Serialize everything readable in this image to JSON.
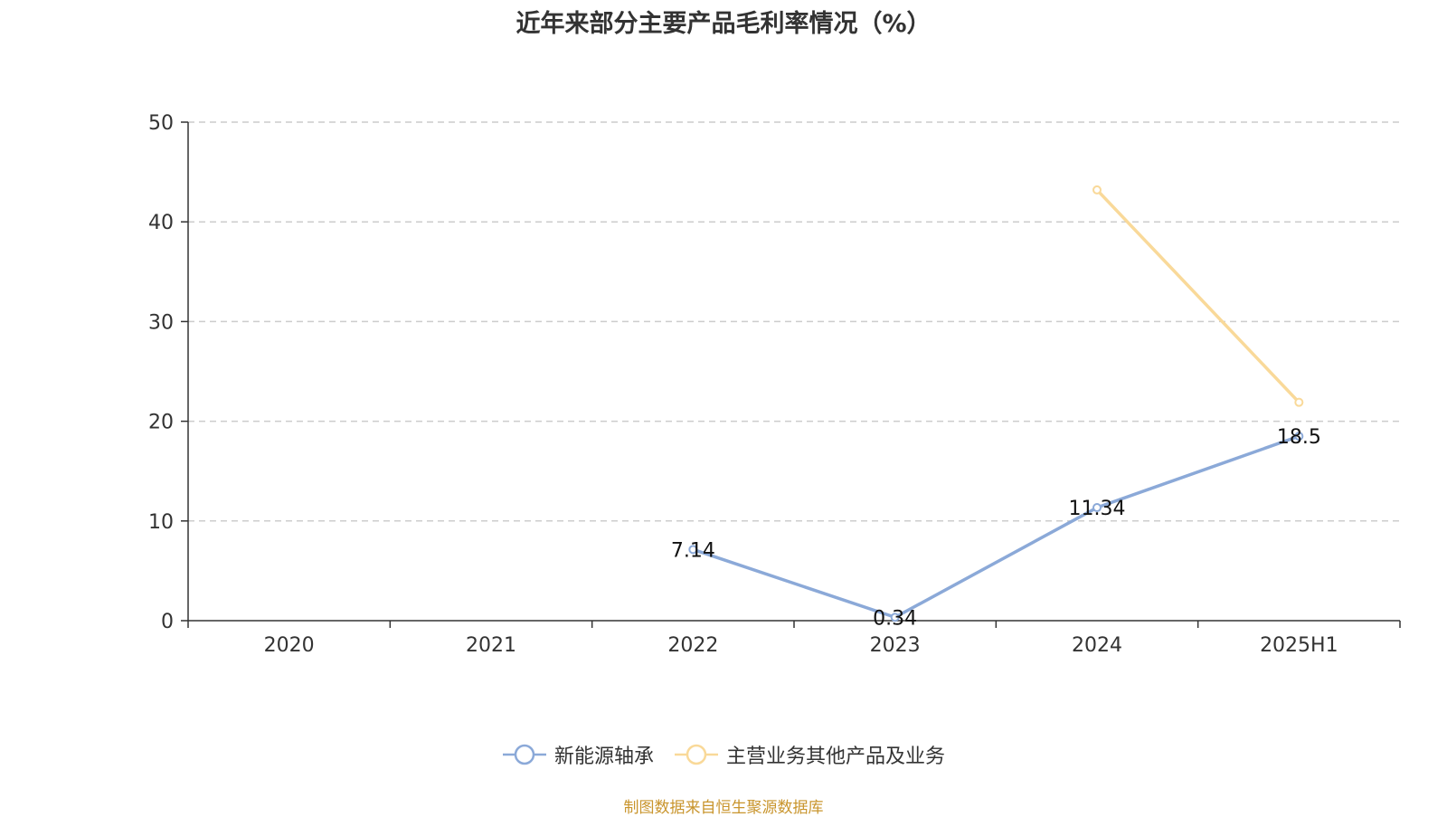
{
  "title": "近年来部分主要产品毛利率情况（%）",
  "source": "制图数据来自恒生聚源数据库",
  "chart_data": {
    "type": "line",
    "title": "近年来部分主要产品毛利率情况（%）",
    "categories": [
      "2020",
      "2021",
      "2022",
      "2023",
      "2024",
      "2025H1"
    ],
    "ylim": [
      0,
      50
    ],
    "yticks": [
      0,
      10,
      20,
      30,
      40,
      50
    ],
    "grid": true,
    "legend_position": "bottom",
    "series": [
      {
        "name": "新能源轴承",
        "color": "#8ba9d8",
        "values": [
          null,
          null,
          7.14,
          0.34,
          11.34,
          18.5
        ],
        "labels": [
          null,
          null,
          "7.14",
          "0.34",
          "11.34",
          "18.5"
        ]
      },
      {
        "name": "主营业务其他产品及业务",
        "color": "#f9d999",
        "values": [
          null,
          null,
          null,
          null,
          43.2,
          21.9
        ],
        "labels": [
          null,
          null,
          null,
          null,
          null,
          null
        ]
      }
    ]
  }
}
